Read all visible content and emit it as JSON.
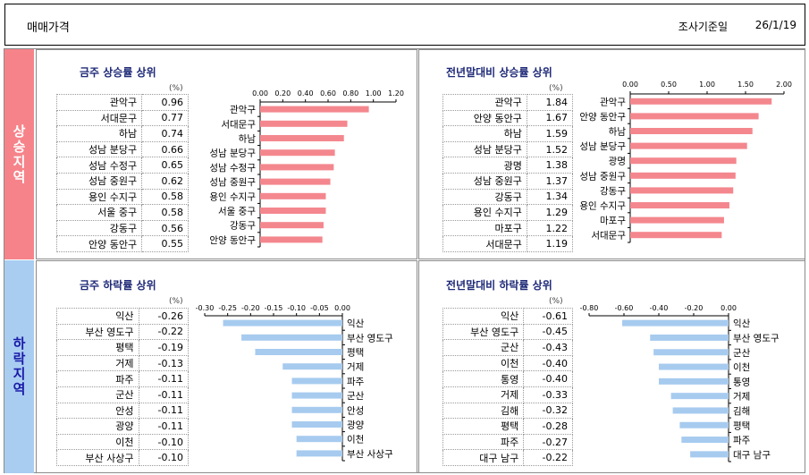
{
  "header": {
    "title": "매매가격",
    "date_label": "조사기준일",
    "date": "26/1/19"
  },
  "side": {
    "up_label": "상승지역",
    "down_label": "하락지역"
  },
  "panels": [
    {
      "title": "금주 상승률 상위",
      "unit": "(%)",
      "rows": [
        {
          "name": "관악구",
          "value": "0.96"
        },
        {
          "name": "서대문구",
          "value": "0.77"
        },
        {
          "name": "하남",
          "value": "0.74"
        },
        {
          "name": "성남 분당구",
          "value": "0.66"
        },
        {
          "name": "성남 수정구",
          "value": "0.65"
        },
        {
          "name": "성남 중원구",
          "value": "0.62"
        },
        {
          "name": "용인 수지구",
          "value": "0.58"
        },
        {
          "name": "서울 중구",
          "value": "0.58"
        },
        {
          "name": "강동구",
          "value": "0.56"
        },
        {
          "name": "안양 동안구",
          "value": "0.55"
        }
      ]
    },
    {
      "title": "전년말대비 상승률 상위",
      "unit": "(%)",
      "rows": [
        {
          "name": "관악구",
          "value": "1.84"
        },
        {
          "name": "안양 동안구",
          "value": "1.67"
        },
        {
          "name": "하남",
          "value": "1.59"
        },
        {
          "name": "성남 분당구",
          "value": "1.52"
        },
        {
          "name": "광명",
          "value": "1.38"
        },
        {
          "name": "성남 중원구",
          "value": "1.37"
        },
        {
          "name": "강동구",
          "value": "1.34"
        },
        {
          "name": "용인 수지구",
          "value": "1.29"
        },
        {
          "name": "마포구",
          "value": "1.22"
        },
        {
          "name": "서대문구",
          "value": "1.19"
        }
      ]
    },
    {
      "title": "금주 하락률 상위",
      "unit": "(%)",
      "rows": [
        {
          "name": "익산",
          "value": "-0.26"
        },
        {
          "name": "부산 영도구",
          "value": "-0.22"
        },
        {
          "name": "평택",
          "value": "-0.19"
        },
        {
          "name": "거제",
          "value": "-0.13"
        },
        {
          "name": "파주",
          "value": "-0.11"
        },
        {
          "name": "군산",
          "value": "-0.11"
        },
        {
          "name": "안성",
          "value": "-0.11"
        },
        {
          "name": "광양",
          "value": "-0.11"
        },
        {
          "name": "이천",
          "value": "-0.10"
        },
        {
          "name": "부산 사상구",
          "value": "-0.10"
        }
      ]
    },
    {
      "title": "전년말대비 하락률 상위",
      "unit": "(%)",
      "rows": [
        {
          "name": "익산",
          "value": "-0.61"
        },
        {
          "name": "부산 영도구",
          "value": "-0.45"
        },
        {
          "name": "군산",
          "value": "-0.43"
        },
        {
          "name": "이천",
          "value": "-0.40"
        },
        {
          "name": "통영",
          "value": "-0.40"
        },
        {
          "name": "거제",
          "value": "-0.33"
        },
        {
          "name": "김해",
          "value": "-0.32"
        },
        {
          "name": "평택",
          "value": "-0.28"
        },
        {
          "name": "파주",
          "value": "-0.27"
        },
        {
          "name": "대구 남구",
          "value": "-0.22"
        }
      ]
    }
  ],
  "chart_data": [
    {
      "type": "bar",
      "orientation": "horizontal",
      "color": "#f4878e",
      "categories": [
        "관악구",
        "서대문구",
        "하남",
        "성남 분당구",
        "성남 수정구",
        "성남 중원구",
        "용인 수지구",
        "서울 중구",
        "강동구",
        "안양 동안구"
      ],
      "values": [
        0.96,
        0.77,
        0.74,
        0.66,
        0.65,
        0.62,
        0.58,
        0.58,
        0.56,
        0.55
      ],
      "xlim": [
        0,
        1.2
      ],
      "ticks": [
        "0.00",
        "0.20",
        "0.40",
        "0.60",
        "0.80",
        "1.00",
        "1.20"
      ]
    },
    {
      "type": "bar",
      "orientation": "horizontal",
      "color": "#f4878e",
      "categories": [
        "관악구",
        "안양 동안구",
        "하남",
        "성남 분당구",
        "광명",
        "성남 중원구",
        "강동구",
        "용인 수지구",
        "마포구",
        "서대문구"
      ],
      "values": [
        1.84,
        1.67,
        1.59,
        1.52,
        1.38,
        1.37,
        1.34,
        1.29,
        1.22,
        1.19
      ],
      "xlim": [
        0,
        2.0
      ],
      "ticks": [
        "0.00",
        "0.50",
        "1.00",
        "1.50",
        "2.00"
      ]
    },
    {
      "type": "bar",
      "orientation": "horizontal",
      "color": "#a7cbef",
      "categories": [
        "익산",
        "부산 영도구",
        "평택",
        "거제",
        "파주",
        "군산",
        "안성",
        "광양",
        "이천",
        "부산 사상구"
      ],
      "values": [
        -0.26,
        -0.22,
        -0.19,
        -0.13,
        -0.11,
        -0.11,
        -0.11,
        -0.11,
        -0.1,
        -0.1
      ],
      "xlim": [
        -0.3,
        0
      ],
      "ticks": [
        "-0.30",
        "-0.25",
        "-0.20",
        "-0.15",
        "-0.10",
        "-0.05",
        "0.00"
      ]
    },
    {
      "type": "bar",
      "orientation": "horizontal",
      "color": "#a7cbef",
      "categories": [
        "익산",
        "부산 영도구",
        "군산",
        "이천",
        "통영",
        "거제",
        "김해",
        "평택",
        "파주",
        "대구 남구"
      ],
      "values": [
        -0.61,
        -0.45,
        -0.43,
        -0.4,
        -0.4,
        -0.33,
        -0.32,
        -0.28,
        -0.27,
        -0.22
      ],
      "xlim": [
        -0.8,
        0
      ],
      "ticks": [
        "-0.80",
        "-0.60",
        "-0.40",
        "-0.20",
        "0.00"
      ]
    }
  ]
}
